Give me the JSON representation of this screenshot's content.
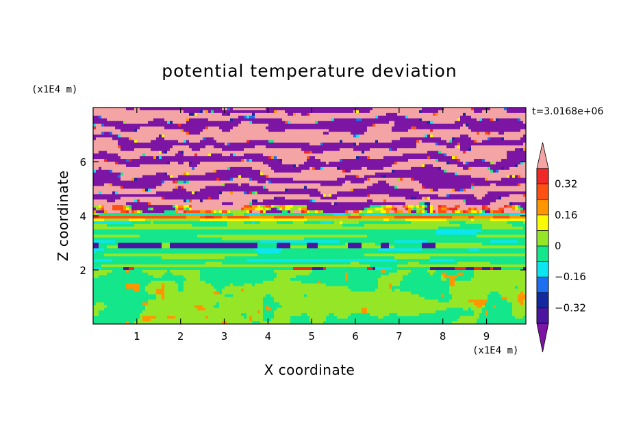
{
  "chart_data": {
    "type": "heatmap",
    "title": "potential temperature deviation",
    "xlabel": "X coordinate",
    "ylabel": "Z coordinate",
    "x_unit_label": "(x1E4 m)",
    "y_unit_label": "(x1E4 m)",
    "time_label": "t=3.0168e+06",
    "x_range": [
      0,
      9.9
    ],
    "y_range": [
      0,
      8
    ],
    "x_ticks": [
      1,
      2,
      3,
      4,
      5,
      6,
      7,
      8,
      9
    ],
    "y_ticks": [
      2,
      4,
      6
    ],
    "colorbar": {
      "levels": [
        -0.4,
        -0.32,
        -0.24,
        -0.16,
        -0.08,
        0,
        0.08,
        0.16,
        0.24,
        0.32,
        0.4
      ],
      "labeled_levels": [
        "0.32",
        "0.16",
        "0",
        "−0.16",
        "−0.32"
      ],
      "labeled_values": [
        0.32,
        0.16,
        0,
        -0.16,
        -0.32
      ],
      "colors": [
        "#7c14a4",
        "#4a16a0",
        "#1428a0",
        "#1e6ef0",
        "#0ce6f0",
        "#14e68c",
        "#96e628",
        "#fafa00",
        "#ff9600",
        "#ff5014",
        "#f02828",
        "#f4a4a4"
      ],
      "extend": "both"
    },
    "field_description_levels": [
      {
        "z_from": 0,
        "z_to": 2,
        "value": 0.02
      },
      {
        "z_from": 2,
        "z_to": 3.7,
        "value": -0.02
      },
      {
        "z_from": 3.7,
        "z_to": 4.4,
        "value": 0.2
      },
      {
        "z_from": 4.4,
        "z_to": 8,
        "value": 0.45
      }
    ]
  }
}
